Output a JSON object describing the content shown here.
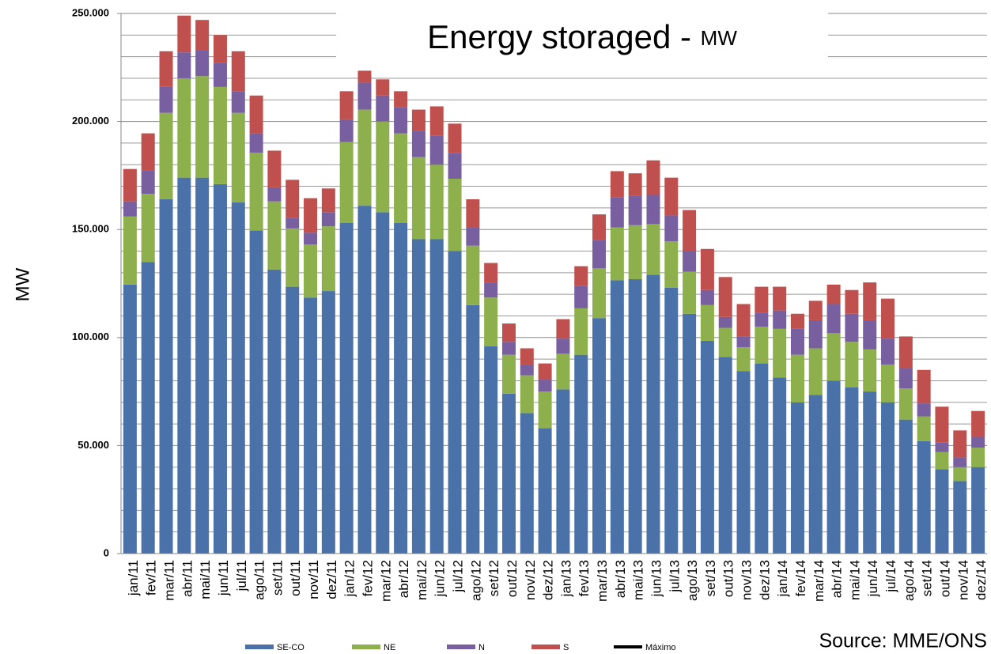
{
  "chart_data": {
    "type": "stacked_bar",
    "title": "Energy storaged -",
    "title_unit": "MW",
    "ylabel": "MW",
    "source": "Source: MME/ONS",
    "categories": [
      "jan/11",
      "fev/11",
      "mar/11",
      "abr/11",
      "mai/11",
      "jun/11",
      "jul/11",
      "ago/11",
      "set/11",
      "out/11",
      "nov/11",
      "dez/11",
      "jan/12",
      "fev/12",
      "mar/12",
      "abr/12",
      "mai/12",
      "jun/12",
      "jul/12",
      "ago/12",
      "set/12",
      "out/12",
      "nov/12",
      "dez/12",
      "jan/13",
      "fev/13",
      "mar/13",
      "abr/13",
      "mai/13",
      "jun/13",
      "jul/13",
      "ago/13",
      "set/13",
      "out/13",
      "nov/13",
      "dez/13",
      "jan/14",
      "fev/14",
      "mar/14",
      "abr/14",
      "mai/14",
      "jun/14",
      "jul/14",
      "ago/14",
      "set/14",
      "out/14",
      "nov/14",
      "dez/14"
    ],
    "series": [
      {
        "name": "SE-CO",
        "color": "#4a72a8",
        "values": [
          124500,
          135000,
          164000,
          174000,
          174000,
          171000,
          162500,
          149500,
          131500,
          123500,
          118500,
          121500,
          153000,
          161000,
          158000,
          153000,
          145500,
          145500,
          140000,
          115000,
          96000,
          74000,
          65000,
          58000,
          76000,
          92000,
          109000,
          126500,
          127000,
          129000,
          123000,
          111000,
          98500,
          91000,
          84500,
          88000,
          81500,
          70000,
          73500,
          80000,
          77000,
          75000,
          70000,
          62000,
          52000,
          39000,
          33500,
          40000
        ]
      },
      {
        "name": "NE",
        "color": "#8db04c",
        "values": [
          31500,
          31500,
          40000,
          46000,
          47000,
          45000,
          41500,
          36000,
          31500,
          27000,
          24500,
          30000,
          37500,
          44500,
          42000,
          41500,
          38000,
          34500,
          33500,
          27500,
          22500,
          18000,
          17500,
          17000,
          16500,
          21500,
          23000,
          24500,
          25000,
          23500,
          21500,
          19500,
          16500,
          13500,
          11000,
          17000,
          22500,
          22000,
          21500,
          22000,
          21000,
          19500,
          17500,
          14500,
          11500,
          8000,
          6500,
          9000
        ]
      },
      {
        "name": "N",
        "color": "#7860a0",
        "values": [
          7000,
          11000,
          12000,
          12000,
          12000,
          11000,
          10000,
          9000,
          6500,
          5000,
          5500,
          6500,
          10500,
          12500,
          12000,
          12000,
          12000,
          13500,
          12000,
          8500,
          7000,
          6000,
          5000,
          5500,
          7000,
          10500,
          13000,
          14000,
          13500,
          13500,
          12000,
          9500,
          7000,
          5000,
          5000,
          6500,
          8500,
          12000,
          13000,
          13500,
          13000,
          13500,
          12000,
          9500,
          6000,
          4500,
          4500,
          5000
        ]
      },
      {
        "name": "S",
        "color": "#c0504d",
        "values": [
          15000,
          17000,
          16500,
          17000,
          14000,
          13000,
          18500,
          17500,
          17000,
          17500,
          16000,
          11000,
          13000,
          5500,
          7500,
          7500,
          10000,
          13500,
          13500,
          13000,
          9000,
          8500,
          7500,
          7500,
          9000,
          9000,
          12000,
          12000,
          10500,
          16000,
          17500,
          19000,
          19000,
          18500,
          15000,
          12000,
          11000,
          7000,
          9000,
          9000,
          11000,
          17500,
          18500,
          14500,
          15500,
          16500,
          12500,
          12000
        ]
      }
    ],
    "reference_line": {
      "name": "Máximo",
      "color": "#000000"
    },
    "ylim": [
      0,
      250000
    ],
    "yticks": [
      0,
      {
        "value": 50000,
        "label": "50.000"
      },
      {
        "value": 100000,
        "label": "100.000"
      },
      {
        "value": 150000,
        "label": "150.000"
      },
      {
        "value": 200000,
        "label": "200.000"
      },
      {
        "value": 250000,
        "label": "250.000"
      }
    ],
    "minor_yticks": [
      10000,
      20000,
      30000,
      40000,
      60000,
      70000,
      80000,
      90000,
      110000,
      120000,
      130000,
      140000,
      160000,
      170000,
      180000,
      190000,
      210000,
      220000,
      230000,
      240000
    ],
    "grid": true
  }
}
